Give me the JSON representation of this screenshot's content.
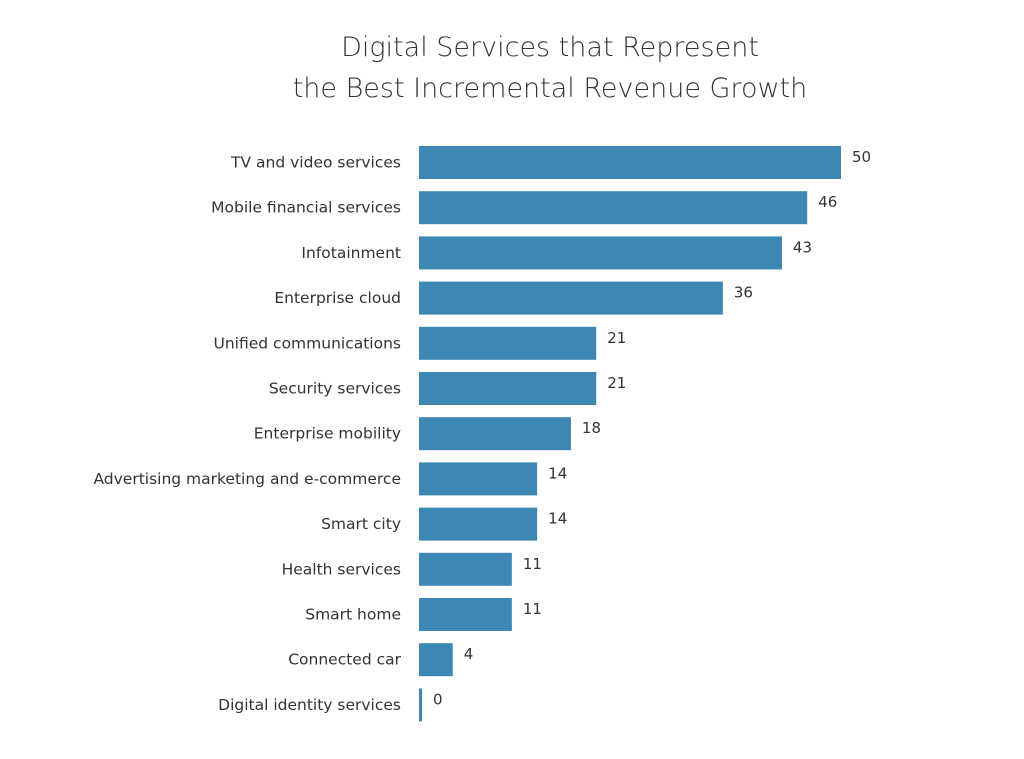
{
  "chart_data": {
    "type": "bar",
    "orientation": "horizontal",
    "title_lines": [
      "Digital Services that Represent",
      "the Best Incremental Revenue Growth"
    ],
    "categories": [
      "TV and video services",
      "Mobile financial services",
      "Infotainment",
      "Enterprise cloud",
      "Unified communications",
      "Security services",
      "Enterprise mobility",
      "Advertising marketing and e-commerce",
      "Smart city",
      "Health services",
      "Smart home",
      "Connected car",
      "Digital identity services"
    ],
    "values": [
      50,
      46,
      43,
      36,
      21,
      21,
      18,
      14,
      14,
      11,
      11,
      4,
      0
    ],
    "xlim": [
      0,
      50
    ],
    "grid": false,
    "legend": "none",
    "colors": {
      "bar": "#3d87b4",
      "text": "#333333"
    }
  }
}
